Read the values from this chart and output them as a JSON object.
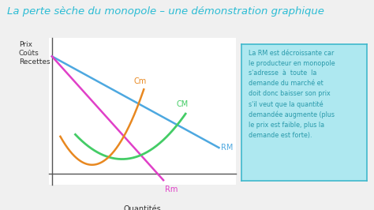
{
  "title": "La perte sèche du monopole – une démonstration graphique",
  "title_color": "#2bbcd4",
  "title_fontsize": 9.5,
  "xlabel": "Quantités",
  "ylabel_lines": [
    "Prix",
    "Coûts",
    "Recettes"
  ],
  "background_color": "#f0f0f0",
  "plot_bg": "#ffffff",
  "curves": {
    "RM": {
      "color": "#4da8e0",
      "label": "RM"
    },
    "Rm": {
      "color": "#e040c8",
      "label": "Rm"
    },
    "CM": {
      "color": "#44cc66",
      "label": "CM"
    },
    "Cm": {
      "color": "#e88820",
      "label": "Cm"
    }
  },
  "textbox": {
    "text": "La RM est décroissante car\nle producteur en monopole\ns'adresse  à  toute  la\ndemande du marché et\ndoit donc baisser son prix\ns'il veut que la quantité\ndemandée augmente (plus\nle prix est faible, plus la\ndemande est forte).",
    "fontsize": 5.8,
    "text_color": "#2899aa",
    "facecolor": "#aee8f0",
    "edgecolor": "#40b8cc",
    "linewidth": 1.2
  }
}
